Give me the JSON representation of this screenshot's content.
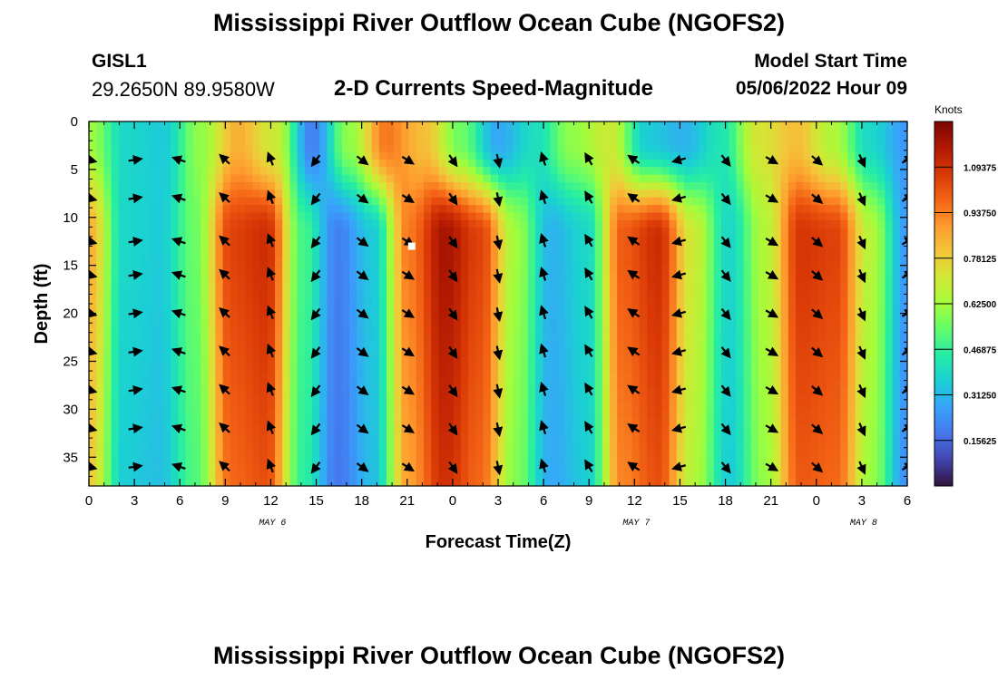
{
  "header": {
    "title": "Mississippi River Outflow Ocean Cube (NGOFS2)",
    "station_id": "GISL1",
    "station_coords": "29.2650N  89.9580W",
    "subtitle": "2-D Currents Speed-Magnitude",
    "model_start_label": "Model Start Time",
    "model_start_value": "05/06/2022 Hour 09"
  },
  "footer": {
    "title": "Mississippi River Outflow Ocean Cube (NGOFS2)"
  },
  "chart_data": {
    "type": "heatmap",
    "title": "2-D Currents Speed-Magnitude",
    "xlabel": "Forecast Time(Z)",
    "ylabel": "Depth (ft)",
    "xlim": [
      0,
      54
    ],
    "ylim": [
      38,
      0
    ],
    "x_ticks": [
      0,
      3,
      6,
      9,
      12,
      15,
      18,
      21,
      24,
      27,
      30,
      33,
      36,
      39,
      42,
      45,
      48,
      51,
      54
    ],
    "x_tick_labels": [
      "0",
      "3",
      "6",
      "9",
      "12",
      "15",
      "18",
      "21",
      "0",
      "3",
      "6",
      "9",
      "12",
      "15",
      "18",
      "21",
      "0",
      "3",
      "6"
    ],
    "y_ticks": [
      0,
      5,
      10,
      15,
      20,
      25,
      30,
      35
    ],
    "y_tick_labels": [
      "0",
      "5",
      "10",
      "15",
      "20",
      "25",
      "30",
      "35"
    ],
    "date_labels": [
      {
        "x": 12,
        "text": "MAY 6"
      },
      {
        "x": 36,
        "text": "MAY 7"
      },
      {
        "x": 51,
        "text": "MAY 8"
      }
    ],
    "colorbar": {
      "label": "Knots",
      "range": [
        0,
        1.25
      ],
      "ticks": [
        0.15625,
        0.3125,
        0.46875,
        0.625,
        0.78125,
        0.9375,
        1.09375
      ],
      "tick_labels": [
        "0.15625",
        "0.31250",
        "0.46875",
        "0.62500",
        "0.78125",
        "0.93750",
        "1.09375"
      ],
      "colors": [
        "#30123b",
        "#4145ab",
        "#4675ed",
        "#39a2fc",
        "#1bcfd4",
        "#24eca6",
        "#61fc6c",
        "#a4fc3b",
        "#d1e834",
        "#f3c63a",
        "#fe9b2d",
        "#f36315",
        "#d93806",
        "#b11901",
        "#7a0402"
      ]
    },
    "surface_speed_knots": [
      0.62,
      0.38,
      0.35,
      0.6,
      0.85,
      0.7,
      0.2,
      0.6,
      0.95,
      0.82,
      0.55,
      0.28,
      0.4,
      0.6,
      0.7,
      0.35,
      0.3,
      0.42,
      0.72,
      0.82,
      0.65,
      0.38,
      0.25
    ],
    "depth_speed_knots": [
      0.85,
      0.38,
      0.35,
      0.55,
      1.05,
      1.1,
      0.5,
      0.2,
      0.35,
      0.95,
      1.18,
      1.05,
      0.62,
      0.3,
      0.38,
      1.0,
      1.1,
      0.7,
      0.38,
      0.65,
      1.08,
      1.05,
      0.65,
      0.25
    ],
    "marker": {
      "x": 21.3,
      "depth": 13,
      "color": "#ffffff"
    },
    "vector_depths": [
      4,
      8,
      12.5,
      16,
      20,
      24,
      28,
      32,
      36
    ],
    "vector_times": [
      0,
      3,
      6,
      9,
      12,
      15,
      18,
      21,
      24,
      27,
      30,
      33,
      36,
      39,
      42,
      45,
      48,
      51,
      54
    ],
    "vector_dirs": [
      {
        "x": 0,
        "dx": 1,
        "dy": 0.25
      },
      {
        "x": 3,
        "dx": 1,
        "dy": -0.15
      },
      {
        "x": 6,
        "dx": -0.9,
        "dy": -0.3
      },
      {
        "x": 9,
        "dx": -0.75,
        "dy": -0.7
      },
      {
        "x": 12,
        "dx": -0.35,
        "dy": -0.9
      },
      {
        "x": 15,
        "dx": -0.6,
        "dy": 0.8
      },
      {
        "x": 18,
        "dx": 0.8,
        "dy": 0.6
      },
      {
        "x": 21,
        "dx": 0.85,
        "dy": 0.55
      },
      {
        "x": 24,
        "dx": 0.55,
        "dy": 0.8
      },
      {
        "x": 27,
        "dx": 0.2,
        "dy": 1
      },
      {
        "x": 30,
        "dx": -0.3,
        "dy": -0.95
      },
      {
        "x": 33,
        "dx": -0.5,
        "dy": -0.85
      },
      {
        "x": 36,
        "dx": -0.8,
        "dy": -0.55
      },
      {
        "x": 39,
        "dx": -0.95,
        "dy": 0.25
      },
      {
        "x": 42,
        "dx": 0.6,
        "dy": 0.75
      },
      {
        "x": 45,
        "dx": 0.85,
        "dy": 0.5
      },
      {
        "x": 48,
        "dx": 0.75,
        "dy": 0.65
      },
      {
        "x": 51,
        "dx": 0.4,
        "dy": 0.9
      },
      {
        "x": 54,
        "dx": 0.85,
        "dy": -0.5
      }
    ]
  }
}
